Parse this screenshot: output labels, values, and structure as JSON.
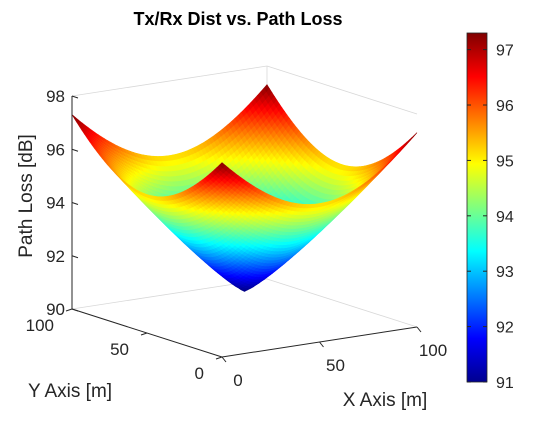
{
  "chart_data": {
    "type": "surface",
    "title": "Tx/Rx Dist vs. Path Loss",
    "xlabel": "X Axis [m]",
    "ylabel": "Y Axis [m]",
    "zlabel": "Path Loss [dB]",
    "xlim": [
      0,
      100
    ],
    "ylim": [
      0,
      100
    ],
    "zlim": [
      90,
      98
    ],
    "x_ticks": [
      "0",
      "50",
      "100"
    ],
    "y_ticks": [
      "0",
      "50",
      "100"
    ],
    "z_ticks": [
      "90",
      "92",
      "94",
      "96",
      "98"
    ],
    "colormap": "jet",
    "colorbar": {
      "range": [
        91,
        97.3
      ],
      "ticks": [
        "91",
        "92",
        "93",
        "94",
        "95",
        "96",
        "97"
      ]
    },
    "surface": {
      "description_points": {
        "center_x": 50,
        "center_y": 50,
        "z_at_center": 91.0,
        "z_at_edge_midpoints": 95.2,
        "z_at_corners": 97.3
      }
    },
    "grid": false
  }
}
